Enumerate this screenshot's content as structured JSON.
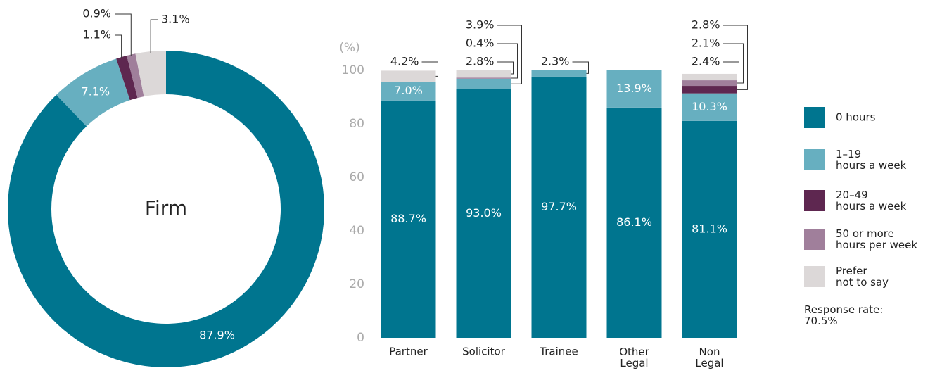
{
  "chart_data": [
    {
      "type": "pie",
      "donut": true,
      "center_label": "Firm",
      "values": [
        87.9,
        7.1,
        1.1,
        0.9,
        3.1
      ],
      "value_labels": [
        "87.9%",
        "7.1%",
        "1.1%",
        "0.9%",
        "3.1%"
      ],
      "colors": [
        "#00758f",
        "#67afc0",
        "#5e2750",
        "#a07f9b",
        "#dcd8d8"
      ]
    },
    {
      "type": "bar",
      "stacked": true,
      "yaxis_label": "(%)",
      "categories": [
        "Partner",
        "Solicitor",
        "Trainee",
        "Other\nLegal",
        "Non\nLegal"
      ],
      "ylim": [
        0,
        100
      ],
      "yticks": [
        0,
        20,
        40,
        60,
        80,
        100
      ],
      "grid": false,
      "series": [
        {
          "name": "0 hours",
          "color": "#00758f",
          "values": [
            88.7,
            93.0,
            97.7,
            86.1,
            81.1
          ],
          "value_labels": [
            "88.7%",
            "93.0%",
            "97.7%",
            "86.1%",
            "81.1%"
          ]
        },
        {
          "name": "1–19\nhours a week",
          "color": "#67afc0",
          "values": [
            7.0,
            3.9,
            2.3,
            13.9,
            10.3
          ],
          "value_labels": [
            "7.0%",
            "3.9%",
            "2.3%",
            "13.9%",
            "10.3%"
          ]
        },
        {
          "name": "20–49\nhours a week",
          "color": "#5e2750",
          "values": [
            null,
            null,
            null,
            null,
            2.8
          ],
          "value_labels": [
            null,
            null,
            null,
            null,
            "2.8%"
          ]
        },
        {
          "name": "50 or more\nhours per week",
          "color": "#a07f9b",
          "values": [
            null,
            0.4,
            null,
            null,
            2.1
          ],
          "value_labels": [
            null,
            "0.4%",
            null,
            null,
            "2.1%"
          ]
        },
        {
          "name": "Prefer\nnot to say",
          "color": "#dcd8d8",
          "values": [
            4.2,
            2.8,
            null,
            null,
            2.4
          ],
          "value_labels": [
            "4.2%",
            "2.8%",
            null,
            null,
            "2.4%"
          ]
        }
      ],
      "legend": "right",
      "note": "Response rate:\n70.5%"
    }
  ]
}
